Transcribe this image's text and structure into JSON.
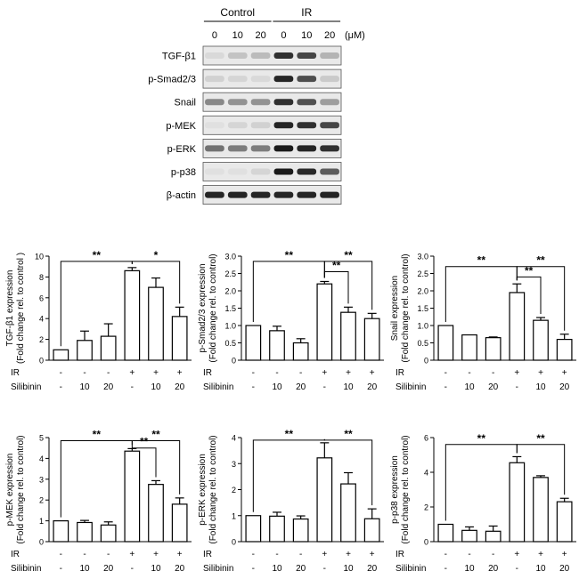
{
  "blot": {
    "groups": [
      "Control",
      "IR"
    ],
    "doses": [
      "0",
      "10",
      "20",
      "0",
      "10",
      "20"
    ],
    "unit": "(μM)",
    "proteins": [
      "TGF-β1",
      "p-Smad2/3",
      "Snail",
      "p-MEK",
      "p-ERK",
      "p-p38",
      "β-actin"
    ],
    "intensity": [
      [
        0.08,
        0.18,
        0.22,
        0.85,
        0.75,
        0.25
      ],
      [
        0.12,
        0.1,
        0.08,
        0.9,
        0.72,
        0.15
      ],
      [
        0.45,
        0.4,
        0.4,
        0.85,
        0.7,
        0.35
      ],
      [
        0.05,
        0.1,
        0.12,
        0.9,
        0.85,
        0.75
      ],
      [
        0.55,
        0.5,
        0.5,
        0.95,
        0.9,
        0.85
      ],
      [
        0.05,
        0.05,
        0.1,
        0.95,
        0.88,
        0.65
      ],
      [
        0.9,
        0.9,
        0.9,
        0.9,
        0.9,
        0.9
      ]
    ]
  },
  "treatment": {
    "ir_label": "IR",
    "silibinin_label": "Silibinin",
    "ir": [
      "-",
      "-",
      "-",
      "+",
      "+",
      "+"
    ],
    "silibinin": [
      "-",
      "10",
      "20",
      "-",
      "10",
      "20"
    ]
  },
  "chart_data": [
    {
      "type": "bar",
      "ylabel": "TGF-β1 expression",
      "ylabel2": "(Fold change rel. to control )",
      "ylim": [
        0,
        10
      ],
      "yticks": [
        0,
        2,
        4,
        6,
        8,
        10
      ],
      "values": [
        1.0,
        1.9,
        2.3,
        8.6,
        7.0,
        4.2
      ],
      "errors": [
        0.0,
        0.9,
        1.2,
        0.3,
        0.9,
        0.9
      ],
      "brackets": [
        {
          "from": 0,
          "to": 3,
          "label": "**",
          "y": 9.5,
          "ref": false
        },
        {
          "from": 3,
          "to": 5,
          "label": "*",
          "y": 9.5,
          "ref": false
        }
      ]
    },
    {
      "type": "bar",
      "ylabel": "p-Smad2/3 expression",
      "ylabel2": "(Fold change rel. to control)",
      "ylim": [
        0,
        3.0
      ],
      "yticks": [
        0,
        0.5,
        1.0,
        1.5,
        2.0,
        2.5,
        3.0
      ],
      "tick_labels": [
        "0",
        "0.5",
        "1.0",
        "1.5",
        "2.0",
        "2.5",
        "3.0"
      ],
      "values": [
        1.0,
        0.85,
        0.5,
        2.2,
        1.38,
        1.2
      ],
      "errors": [
        0.0,
        0.13,
        0.12,
        0.07,
        0.15,
        0.15
      ],
      "brackets": [
        {
          "from": 0,
          "to": 3,
          "label": "**",
          "y": 2.85,
          "ref": false
        },
        {
          "from": 3,
          "to": 5,
          "label": "**",
          "y": 2.85,
          "ref": true
        },
        {
          "from": 3,
          "to": 4,
          "label": "**",
          "y": 2.55,
          "ref": true
        }
      ]
    },
    {
      "type": "bar",
      "ylabel": "Snail expression",
      "ylabel2": "(Fold change rel. to control)",
      "ylim": [
        0,
        3.0
      ],
      "yticks": [
        0,
        0.5,
        1.0,
        1.5,
        2.0,
        2.5,
        3.0
      ],
      "tick_labels": [
        "0",
        "0.5",
        "1.0",
        "1.5",
        "2.0",
        "2.5",
        "3.0"
      ],
      "values": [
        1.0,
        0.73,
        0.65,
        1.95,
        1.15,
        0.6
      ],
      "errors": [
        0.0,
        0.0,
        0.02,
        0.25,
        0.08,
        0.15
      ],
      "brackets": [
        {
          "from": 0,
          "to": 3,
          "label": "**",
          "y": 2.7,
          "ref": false
        },
        {
          "from": 3,
          "to": 5,
          "label": "**",
          "y": 2.7,
          "ref": true
        },
        {
          "from": 3,
          "to": 4,
          "label": "**",
          "y": 2.4,
          "ref": true
        }
      ]
    },
    {
      "type": "bar",
      "ylabel": "p-MEK expression",
      "ylabel2": "(Fold change rel. to control)",
      "ylim": [
        0,
        5
      ],
      "yticks": [
        0,
        1,
        2,
        3,
        4,
        5
      ],
      "values": [
        1.0,
        0.92,
        0.8,
        4.35,
        2.75,
        1.8
      ],
      "errors": [
        0.0,
        0.1,
        0.15,
        0.12,
        0.18,
        0.3
      ],
      "brackets": [
        {
          "from": 0,
          "to": 3,
          "label": "**",
          "y": 4.85,
          "ref": false
        },
        {
          "from": 3,
          "to": 5,
          "label": "**",
          "y": 4.85,
          "ref": true
        },
        {
          "from": 3,
          "to": 4,
          "label": "**",
          "y": 4.5,
          "ref": true
        }
      ]
    },
    {
      "type": "bar",
      "ylabel": "p-ERK expression",
      "ylabel2": "(Fold change rel. to control)",
      "ylim": [
        0,
        4
      ],
      "yticks": [
        0,
        1,
        2,
        3,
        4
      ],
      "values": [
        1.0,
        0.98,
        0.87,
        3.22,
        2.22,
        0.88
      ],
      "errors": [
        0.0,
        0.15,
        0.12,
        0.58,
        0.43,
        0.38
      ],
      "brackets": [
        {
          "from": 0,
          "to": 3,
          "label": "**",
          "y": 3.9,
          "ref": false
        },
        {
          "from": 3,
          "to": 5,
          "label": "**",
          "y": 3.9,
          "ref": true
        }
      ]
    },
    {
      "type": "bar",
      "ylabel": "p-p38 expression",
      "ylabel2": "(Fold change rel. to control)",
      "ylim": [
        0,
        6
      ],
      "yticks": [
        0,
        2,
        4,
        6
      ],
      "values": [
        1.0,
        0.65,
        0.6,
        4.55,
        3.7,
        2.3
      ],
      "errors": [
        0.0,
        0.2,
        0.3,
        0.35,
        0.1,
        0.2
      ],
      "brackets": [
        {
          "from": 0,
          "to": 3,
          "label": "**",
          "y": 5.6,
          "ref": false
        },
        {
          "from": 3,
          "to": 5,
          "label": "**",
          "y": 5.6,
          "ref": true
        }
      ]
    }
  ]
}
